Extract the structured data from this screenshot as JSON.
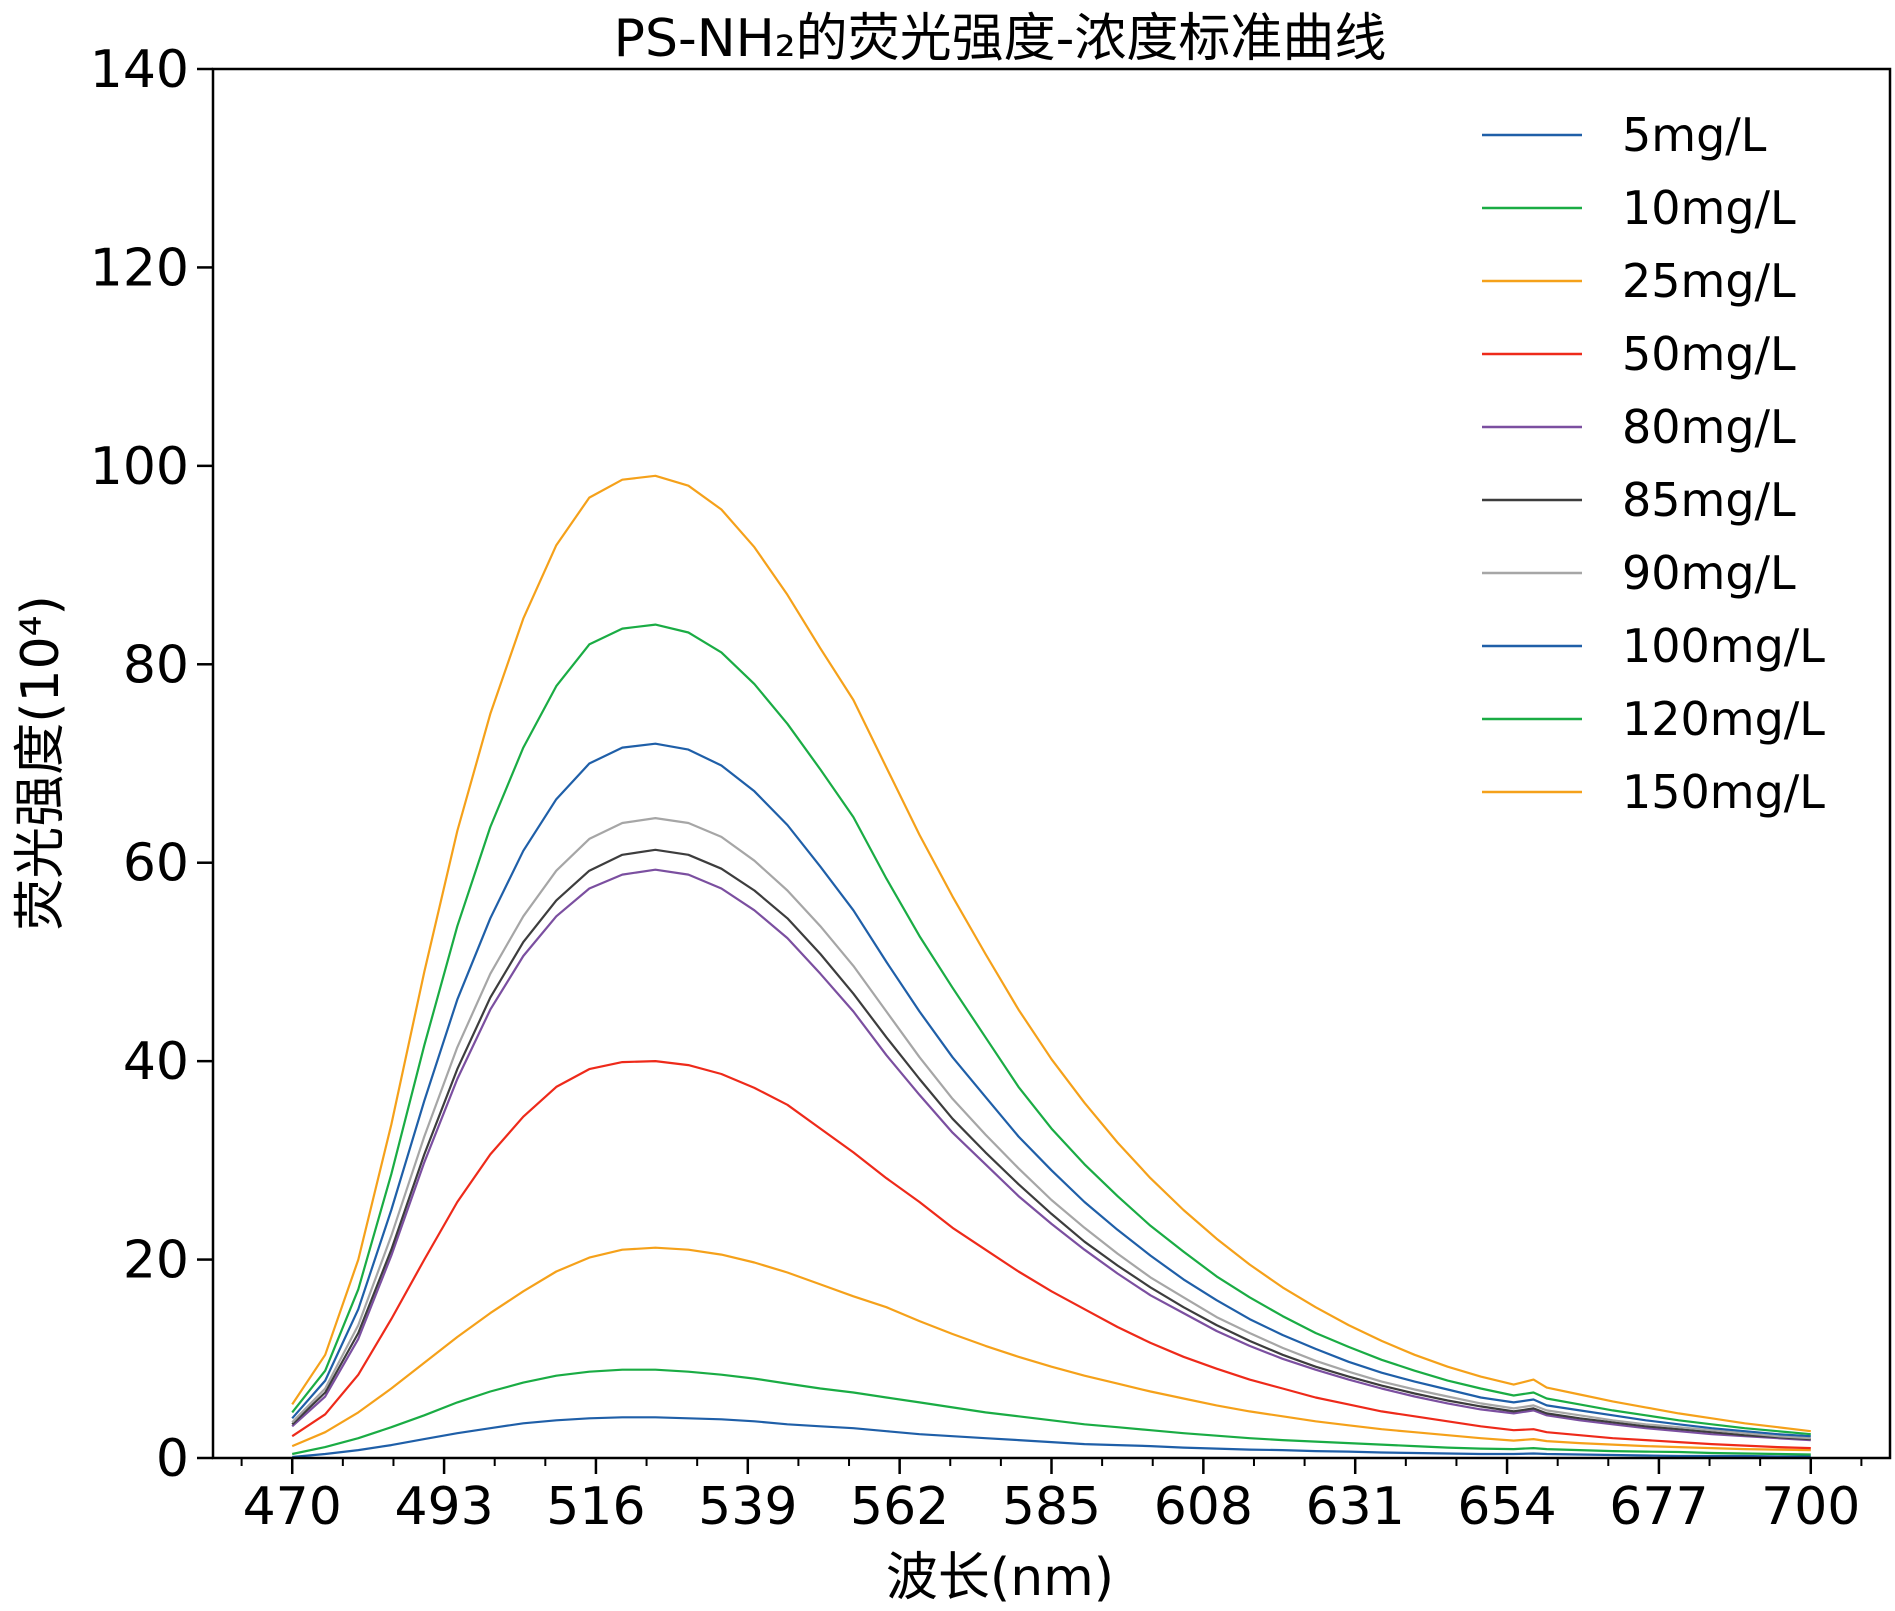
{
  "chart_data": {
    "type": "line",
    "title": "PS-NH₂的荧光强度-浓度标准曲线",
    "xlabel": "波长(nm)",
    "ylabel": "荧光强度(10⁴)",
    "xlim": [
      458,
      712
    ],
    "ylim": [
      0,
      140
    ],
    "xticks": [
      470,
      493,
      516,
      539,
      562,
      585,
      608,
      631,
      654,
      677,
      700
    ],
    "yticks": [
      0,
      20,
      40,
      60,
      80,
      100,
      120,
      140
    ],
    "grid": false,
    "legend_position": "top-right",
    "x": [
      470,
      475,
      480,
      485,
      490,
      495,
      500,
      505,
      510,
      515,
      520,
      525,
      530,
      535,
      540,
      545,
      550,
      555,
      560,
      565,
      570,
      575,
      580,
      585,
      590,
      595,
      600,
      605,
      610,
      615,
      620,
      625,
      630,
      635,
      640,
      645,
      650,
      655,
      658,
      660,
      665,
      670,
      675,
      680,
      685,
      690,
      695,
      700
    ],
    "series": [
      {
        "name": "5mg/L",
        "color": "#1f5fa8",
        "values": [
          0.1,
          0.4,
          0.8,
          1.3,
          1.9,
          2.5,
          3.0,
          3.5,
          3.8,
          4.0,
          4.1,
          4.1,
          4.0,
          3.9,
          3.7,
          3.4,
          3.2,
          3.0,
          2.7,
          2.4,
          2.2,
          2.0,
          1.8,
          1.6,
          1.4,
          1.3,
          1.2,
          1.05,
          0.95,
          0.85,
          0.8,
          0.7,
          0.65,
          0.55,
          0.5,
          0.45,
          0.4,
          0.4,
          0.45,
          0.4,
          0.35,
          0.3,
          0.25,
          0.2,
          0.2,
          0.2,
          0.15,
          0.15
        ]
      },
      {
        "name": "10mg/L",
        "color": "#1aac44",
        "values": [
          0.4,
          1.1,
          2.0,
          3.1,
          4.3,
          5.6,
          6.7,
          7.6,
          8.3,
          8.7,
          8.9,
          8.9,
          8.7,
          8.4,
          8.0,
          7.5,
          7.0,
          6.6,
          6.1,
          5.6,
          5.1,
          4.6,
          4.2,
          3.8,
          3.4,
          3.1,
          2.8,
          2.5,
          2.25,
          2.0,
          1.8,
          1.65,
          1.5,
          1.35,
          1.2,
          1.05,
          0.95,
          0.9,
          1.0,
          0.9,
          0.8,
          0.7,
          0.65,
          0.6,
          0.5,
          0.45,
          0.4,
          0.35
        ]
      },
      {
        "name": "25mg/L",
        "color": "#f5a11a",
        "values": [
          1.2,
          2.6,
          4.6,
          7.0,
          9.6,
          12.2,
          14.6,
          16.8,
          18.8,
          20.2,
          21.0,
          21.2,
          21.0,
          20.5,
          19.7,
          18.7,
          17.5,
          16.3,
          15.2,
          13.8,
          12.5,
          11.3,
          10.2,
          9.2,
          8.3,
          7.5,
          6.7,
          6.0,
          5.3,
          4.7,
          4.2,
          3.7,
          3.3,
          2.9,
          2.6,
          2.3,
          2.0,
          1.75,
          1.9,
          1.7,
          1.5,
          1.35,
          1.2,
          1.1,
          1.0,
          0.9,
          0.85,
          0.8
        ]
      },
      {
        "name": "50mg/L",
        "color": "#ee2a1a",
        "values": [
          2.2,
          4.4,
          8.4,
          14.0,
          20.0,
          25.8,
          30.6,
          34.4,
          37.4,
          39.2,
          39.9,
          40.0,
          39.6,
          38.7,
          37.3,
          35.6,
          33.2,
          30.8,
          28.2,
          25.8,
          23.2,
          21.0,
          18.8,
          16.8,
          15.0,
          13.2,
          11.6,
          10.2,
          9.0,
          7.9,
          7.0,
          6.1,
          5.4,
          4.7,
          4.2,
          3.7,
          3.2,
          2.8,
          2.9,
          2.6,
          2.3,
          2.0,
          1.8,
          1.6,
          1.4,
          1.25,
          1.1,
          1.0
        ]
      },
      {
        "name": "80mg/L",
        "color": "#7b4fa0",
        "values": [
          3.2,
          6.2,
          12.0,
          20.4,
          29.8,
          38.2,
          45.2,
          50.6,
          54.6,
          57.4,
          58.8,
          59.3,
          58.8,
          57.4,
          55.2,
          52.4,
          48.8,
          45.0,
          40.6,
          36.6,
          32.8,
          29.6,
          26.4,
          23.6,
          21.0,
          18.6,
          16.4,
          14.6,
          12.8,
          11.3,
          10.0,
          8.9,
          7.9,
          7.0,
          6.2,
          5.5,
          4.9,
          4.5,
          4.8,
          4.3,
          3.8,
          3.4,
          3.0,
          2.7,
          2.4,
          2.2,
          2.0,
          1.8
        ]
      },
      {
        "name": "85mg/L",
        "color": "#3d3d3d",
        "values": [
          3.4,
          6.6,
          12.6,
          21.0,
          30.6,
          39.2,
          46.4,
          52.0,
          56.2,
          59.2,
          60.8,
          61.3,
          60.8,
          59.4,
          57.2,
          54.4,
          50.8,
          46.8,
          42.4,
          38.2,
          34.2,
          30.8,
          27.6,
          24.6,
          21.8,
          19.4,
          17.2,
          15.2,
          13.4,
          11.8,
          10.4,
          9.2,
          8.2,
          7.3,
          6.5,
          5.8,
          5.2,
          4.7,
          5.0,
          4.5,
          4.0,
          3.6,
          3.2,
          2.9,
          2.6,
          2.3,
          2.1,
          1.9
        ]
      },
      {
        "name": "90mg/L",
        "color": "#a6a6a6",
        "values": [
          3.6,
          7.0,
          13.4,
          22.4,
          32.4,
          41.4,
          48.8,
          54.6,
          59.2,
          62.4,
          64.0,
          64.5,
          64.0,
          62.6,
          60.2,
          57.2,
          53.6,
          49.6,
          45.0,
          40.4,
          36.2,
          32.6,
          29.2,
          26.0,
          23.2,
          20.6,
          18.2,
          16.2,
          14.2,
          12.6,
          11.1,
          9.8,
          8.7,
          7.7,
          6.9,
          6.2,
          5.5,
          5.0,
          5.3,
          4.8,
          4.3,
          3.8,
          3.4,
          3.1,
          2.8,
          2.5,
          2.2,
          2.0
        ]
      },
      {
        "name": "100mg/L",
        "color": "#1f5fa8",
        "values": [
          4.0,
          7.8,
          15.0,
          25.0,
          36.0,
          46.2,
          54.4,
          61.2,
          66.4,
          70.0,
          71.6,
          72.0,
          71.4,
          69.8,
          67.2,
          63.8,
          59.6,
          55.2,
          50.0,
          45.0,
          40.4,
          36.4,
          32.4,
          29.0,
          25.8,
          23.0,
          20.4,
          18.0,
          15.9,
          14.0,
          12.4,
          11.0,
          9.7,
          8.6,
          7.7,
          6.9,
          6.1,
          5.6,
          5.9,
          5.3,
          4.8,
          4.3,
          3.8,
          3.4,
          3.0,
          2.7,
          2.4,
          2.2
        ]
      },
      {
        "name": "120mg/L",
        "color": "#1aac44",
        "values": [
          4.6,
          8.8,
          17.0,
          28.6,
          41.6,
          53.6,
          63.6,
          71.6,
          77.8,
          82.0,
          83.6,
          84.0,
          83.2,
          81.2,
          78.0,
          74.0,
          69.4,
          64.6,
          58.4,
          52.6,
          47.4,
          42.4,
          37.4,
          33.2,
          29.6,
          26.4,
          23.4,
          20.8,
          18.3,
          16.2,
          14.3,
          12.6,
          11.2,
          9.9,
          8.8,
          7.8,
          7.0,
          6.3,
          6.6,
          6.0,
          5.4,
          4.8,
          4.3,
          3.8,
          3.4,
          3.0,
          2.7,
          2.4
        ]
      },
      {
        "name": "150mg/L",
        "color": "#f5a11a",
        "values": [
          5.4,
          10.4,
          20.0,
          33.6,
          49.0,
          63.2,
          75.0,
          84.6,
          92.0,
          96.8,
          98.6,
          99.0,
          98.0,
          95.6,
          91.8,
          87.0,
          81.6,
          76.4,
          69.6,
          62.8,
          56.6,
          50.8,
          45.2,
          40.2,
          35.8,
          31.8,
          28.2,
          25.0,
          22.1,
          19.5,
          17.2,
          15.2,
          13.4,
          11.8,
          10.4,
          9.2,
          8.2,
          7.4,
          7.9,
          7.1,
          6.4,
          5.7,
          5.1,
          4.5,
          4.0,
          3.5,
          3.1,
          2.7
        ]
      }
    ]
  }
}
